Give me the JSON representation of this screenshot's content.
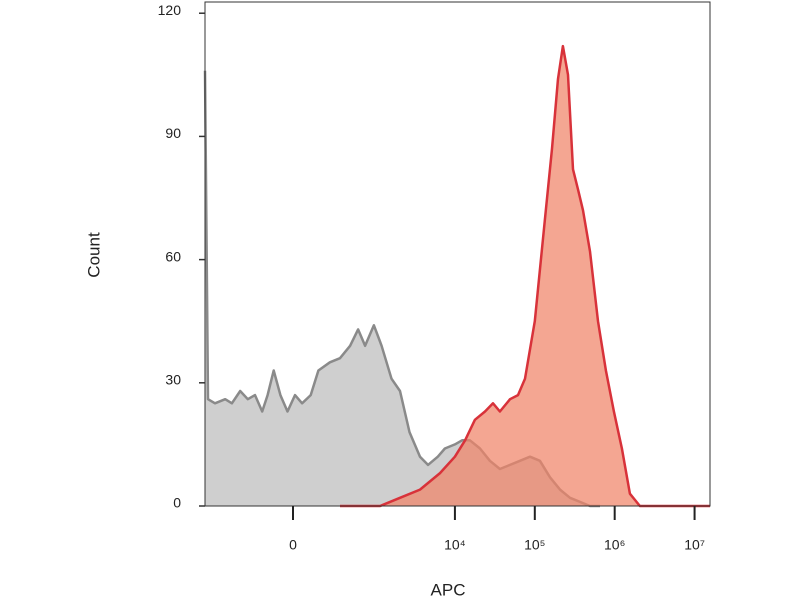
{
  "chart_data": {
    "type": "area",
    "x_label": "APC",
    "y_label": "Count",
    "xscale": {
      "type": "arcsinh",
      "cofactor": 188
    },
    "xlim": [
      -1180,
      15600000
    ],
    "xticks": [
      0,
      {
        "value": 10000,
        "label": "10⁴"
      },
      {
        "value": 100000,
        "label": "10⁵"
      },
      {
        "value": 1000000,
        "label": "10⁶"
      },
      {
        "value": 10000000,
        "label": "10⁷"
      }
    ],
    "ylim": [
      0,
      122
    ],
    "yticks": [
      0,
      30,
      60,
      90,
      120
    ],
    "series": [
      {
        "color": "#8a8a8a",
        "fill": "#cfcfcf",
        "x": [
          -1180,
          -1080,
          -880,
          -650,
          -530,
          -410,
          -320,
          -250,
          -190,
          -150,
          -110,
          -70,
          -30,
          11,
          50,
          100,
          150,
          240,
          340,
          470,
          600,
          740,
          960,
          1200,
          1600,
          2050,
          2700,
          3650,
          4600,
          6100,
          7500,
          10000,
          12300,
          15400,
          20600,
          27400,
          36600,
          48900,
          65200,
          87000,
          116000,
          155000,
          207000,
          276000,
          368000,
          491000,
          654000
        ],
        "values": [
          106,
          26,
          25,
          26,
          25,
          28,
          26,
          27,
          23,
          27,
          33,
          27,
          23,
          27,
          25,
          27,
          33,
          35,
          36,
          39,
          43,
          39,
          44,
          39,
          31,
          28,
          18,
          12,
          10,
          12,
          14,
          15,
          16,
          16,
          14,
          11,
          9,
          10,
          11,
          12,
          11,
          7,
          4,
          2,
          1,
          0,
          0
        ]
      },
      {
        "color": "#d8323a",
        "fill": "#f08468",
        "x": [
          340,
          1150,
          2050,
          3650,
          6500,
          10000,
          13400,
          17800,
          23800,
          30000,
          36600,
          48900,
          61600,
          75400,
          100000,
          134000,
          164000,
          195000,
          225000,
          260000,
          301000,
          348000,
          401000,
          491000,
          618000,
          777000,
          979000,
          1231000,
          1549000,
          2068000,
          2754000,
          15600000
        ],
        "values": [
          0,
          0,
          2,
          4,
          8,
          12,
          16,
          21,
          23,
          25,
          23,
          26,
          27,
          31,
          45,
          70,
          87,
          104,
          112,
          105,
          82,
          77,
          72,
          62,
          45,
          33,
          23,
          14,
          3,
          0,
          0,
          0
        ]
      }
    ]
  }
}
